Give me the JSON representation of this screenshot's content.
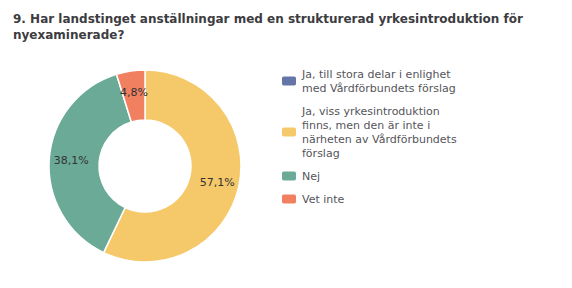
{
  "chart_data": {
    "type": "donut",
    "title": "9. Har landstinget anställningar med en strukturerad yrkesintroduktion för\nnyexaminerade?",
    "categories": [
      "Ja, till stora delar i enlighet\nmed Vårdförbundets förslag",
      "Ja, viss yrkesintroduktion\nfinns, men den är inte i\nnärheten av Vårdförbundets\nförslag",
      "Nej",
      "Vet inte"
    ],
    "values": [
      0.0,
      57.1,
      38.1,
      4.8
    ],
    "value_labels": [
      null,
      "57,1%",
      "38,1%",
      "4,8%"
    ],
    "data_labels": true,
    "colors": [
      "#6475a8",
      "#f5c96a",
      "#6aaa96",
      "#f08060"
    ],
    "legend": "right"
  }
}
